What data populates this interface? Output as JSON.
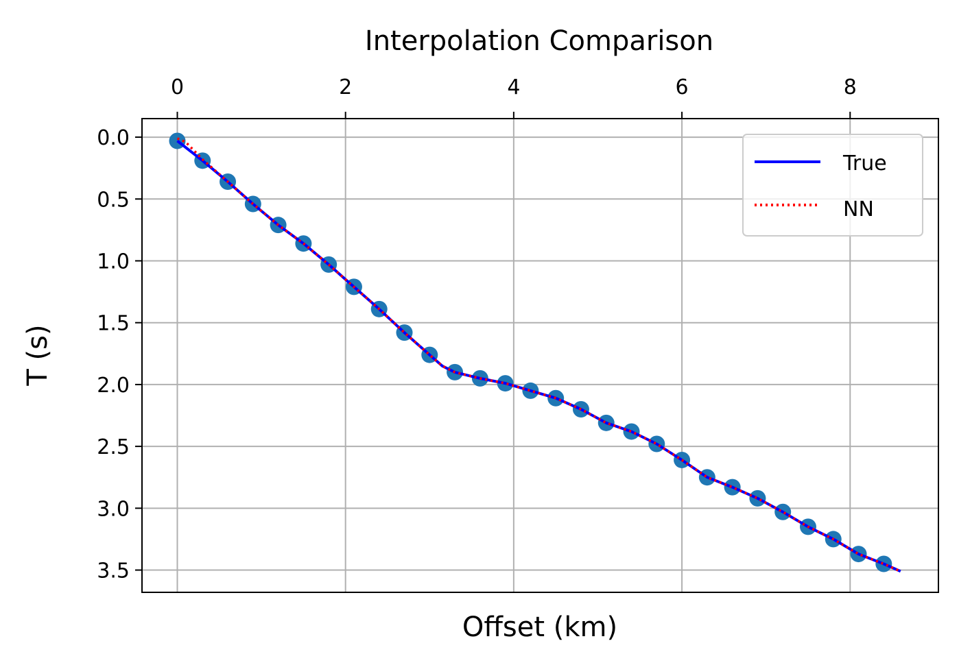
{
  "chart_data": {
    "type": "line",
    "title": "Interpolation Comparison",
    "xlabel": "Offset (km)",
    "ylabel": "T (s)",
    "xaxis_position": "top",
    "yaxis_inverted": true,
    "xlim": [
      -0.42,
      9.05
    ],
    "ylim": [
      3.68,
      -0.15
    ],
    "xticks": [
      0,
      2,
      4,
      6,
      8
    ],
    "xtick_labels": [
      "0",
      "2",
      "4",
      "6",
      "8"
    ],
    "yticks": [
      0.0,
      0.5,
      1.0,
      1.5,
      2.0,
      2.5,
      3.0,
      3.5
    ],
    "ytick_labels": [
      "0.0",
      "0.5",
      "1.0",
      "1.5",
      "2.0",
      "2.5",
      "3.0",
      "3.5"
    ],
    "grid": true,
    "legend_position": "top-right",
    "legend": [
      "True",
      "NN"
    ],
    "points": {
      "color": "#1f77b4",
      "x": [
        0.0,
        0.3,
        0.6,
        0.9,
        1.2,
        1.5,
        1.8,
        2.1,
        2.4,
        2.7,
        3.0,
        3.3,
        3.6,
        3.9,
        4.2,
        4.5,
        4.8,
        5.1,
        5.4,
        5.7,
        6.0,
        6.3,
        6.6,
        6.9,
        7.2,
        7.5,
        7.8,
        8.1,
        8.4
      ],
      "y": [
        0.03,
        0.19,
        0.36,
        0.54,
        0.71,
        0.86,
        1.03,
        1.21,
        1.39,
        1.58,
        1.76,
        1.9,
        1.95,
        1.99,
        2.05,
        2.11,
        2.2,
        2.31,
        2.38,
        2.48,
        2.61,
        2.75,
        2.83,
        2.92,
        3.03,
        3.15,
        3.25,
        3.37,
        3.45
      ]
    },
    "series": [
      {
        "name": "True",
        "color": "#0000ff",
        "style": "solid",
        "x": [
          0.0,
          0.3,
          0.6,
          0.9,
          1.2,
          1.5,
          1.8,
          2.1,
          2.4,
          2.7,
          3.0,
          3.15,
          3.3,
          3.6,
          3.9,
          4.2,
          4.5,
          4.8,
          5.1,
          5.4,
          5.7,
          6.0,
          6.3,
          6.6,
          6.9,
          7.2,
          7.5,
          7.8,
          8.1,
          8.4,
          8.6
        ],
        "y": [
          0.03,
          0.19,
          0.36,
          0.54,
          0.71,
          0.86,
          1.03,
          1.21,
          1.39,
          1.58,
          1.76,
          1.85,
          1.9,
          1.95,
          1.99,
          2.05,
          2.11,
          2.2,
          2.31,
          2.38,
          2.48,
          2.61,
          2.75,
          2.83,
          2.92,
          3.03,
          3.15,
          3.25,
          3.37,
          3.45,
          3.51
        ]
      },
      {
        "name": "NN",
        "color": "#ff0000",
        "style": "dotted",
        "x": [
          0.0,
          0.1,
          0.3,
          0.6,
          0.9,
          1.2,
          1.5,
          1.8,
          2.1,
          2.4,
          2.7,
          3.0,
          3.15,
          3.3,
          3.6,
          3.9,
          4.2,
          4.5,
          4.8,
          5.1,
          5.4,
          5.7,
          6.0,
          6.3,
          6.6,
          6.9,
          7.2,
          7.5,
          7.8,
          8.1,
          8.4,
          8.6
        ],
        "y": [
          0.01,
          0.04,
          0.18,
          0.36,
          0.54,
          0.71,
          0.86,
          1.03,
          1.21,
          1.39,
          1.58,
          1.76,
          1.85,
          1.9,
          1.95,
          1.99,
          2.05,
          2.11,
          2.2,
          2.31,
          2.38,
          2.48,
          2.61,
          2.75,
          2.83,
          2.92,
          3.03,
          3.15,
          3.25,
          3.37,
          3.45,
          3.51
        ]
      }
    ]
  }
}
